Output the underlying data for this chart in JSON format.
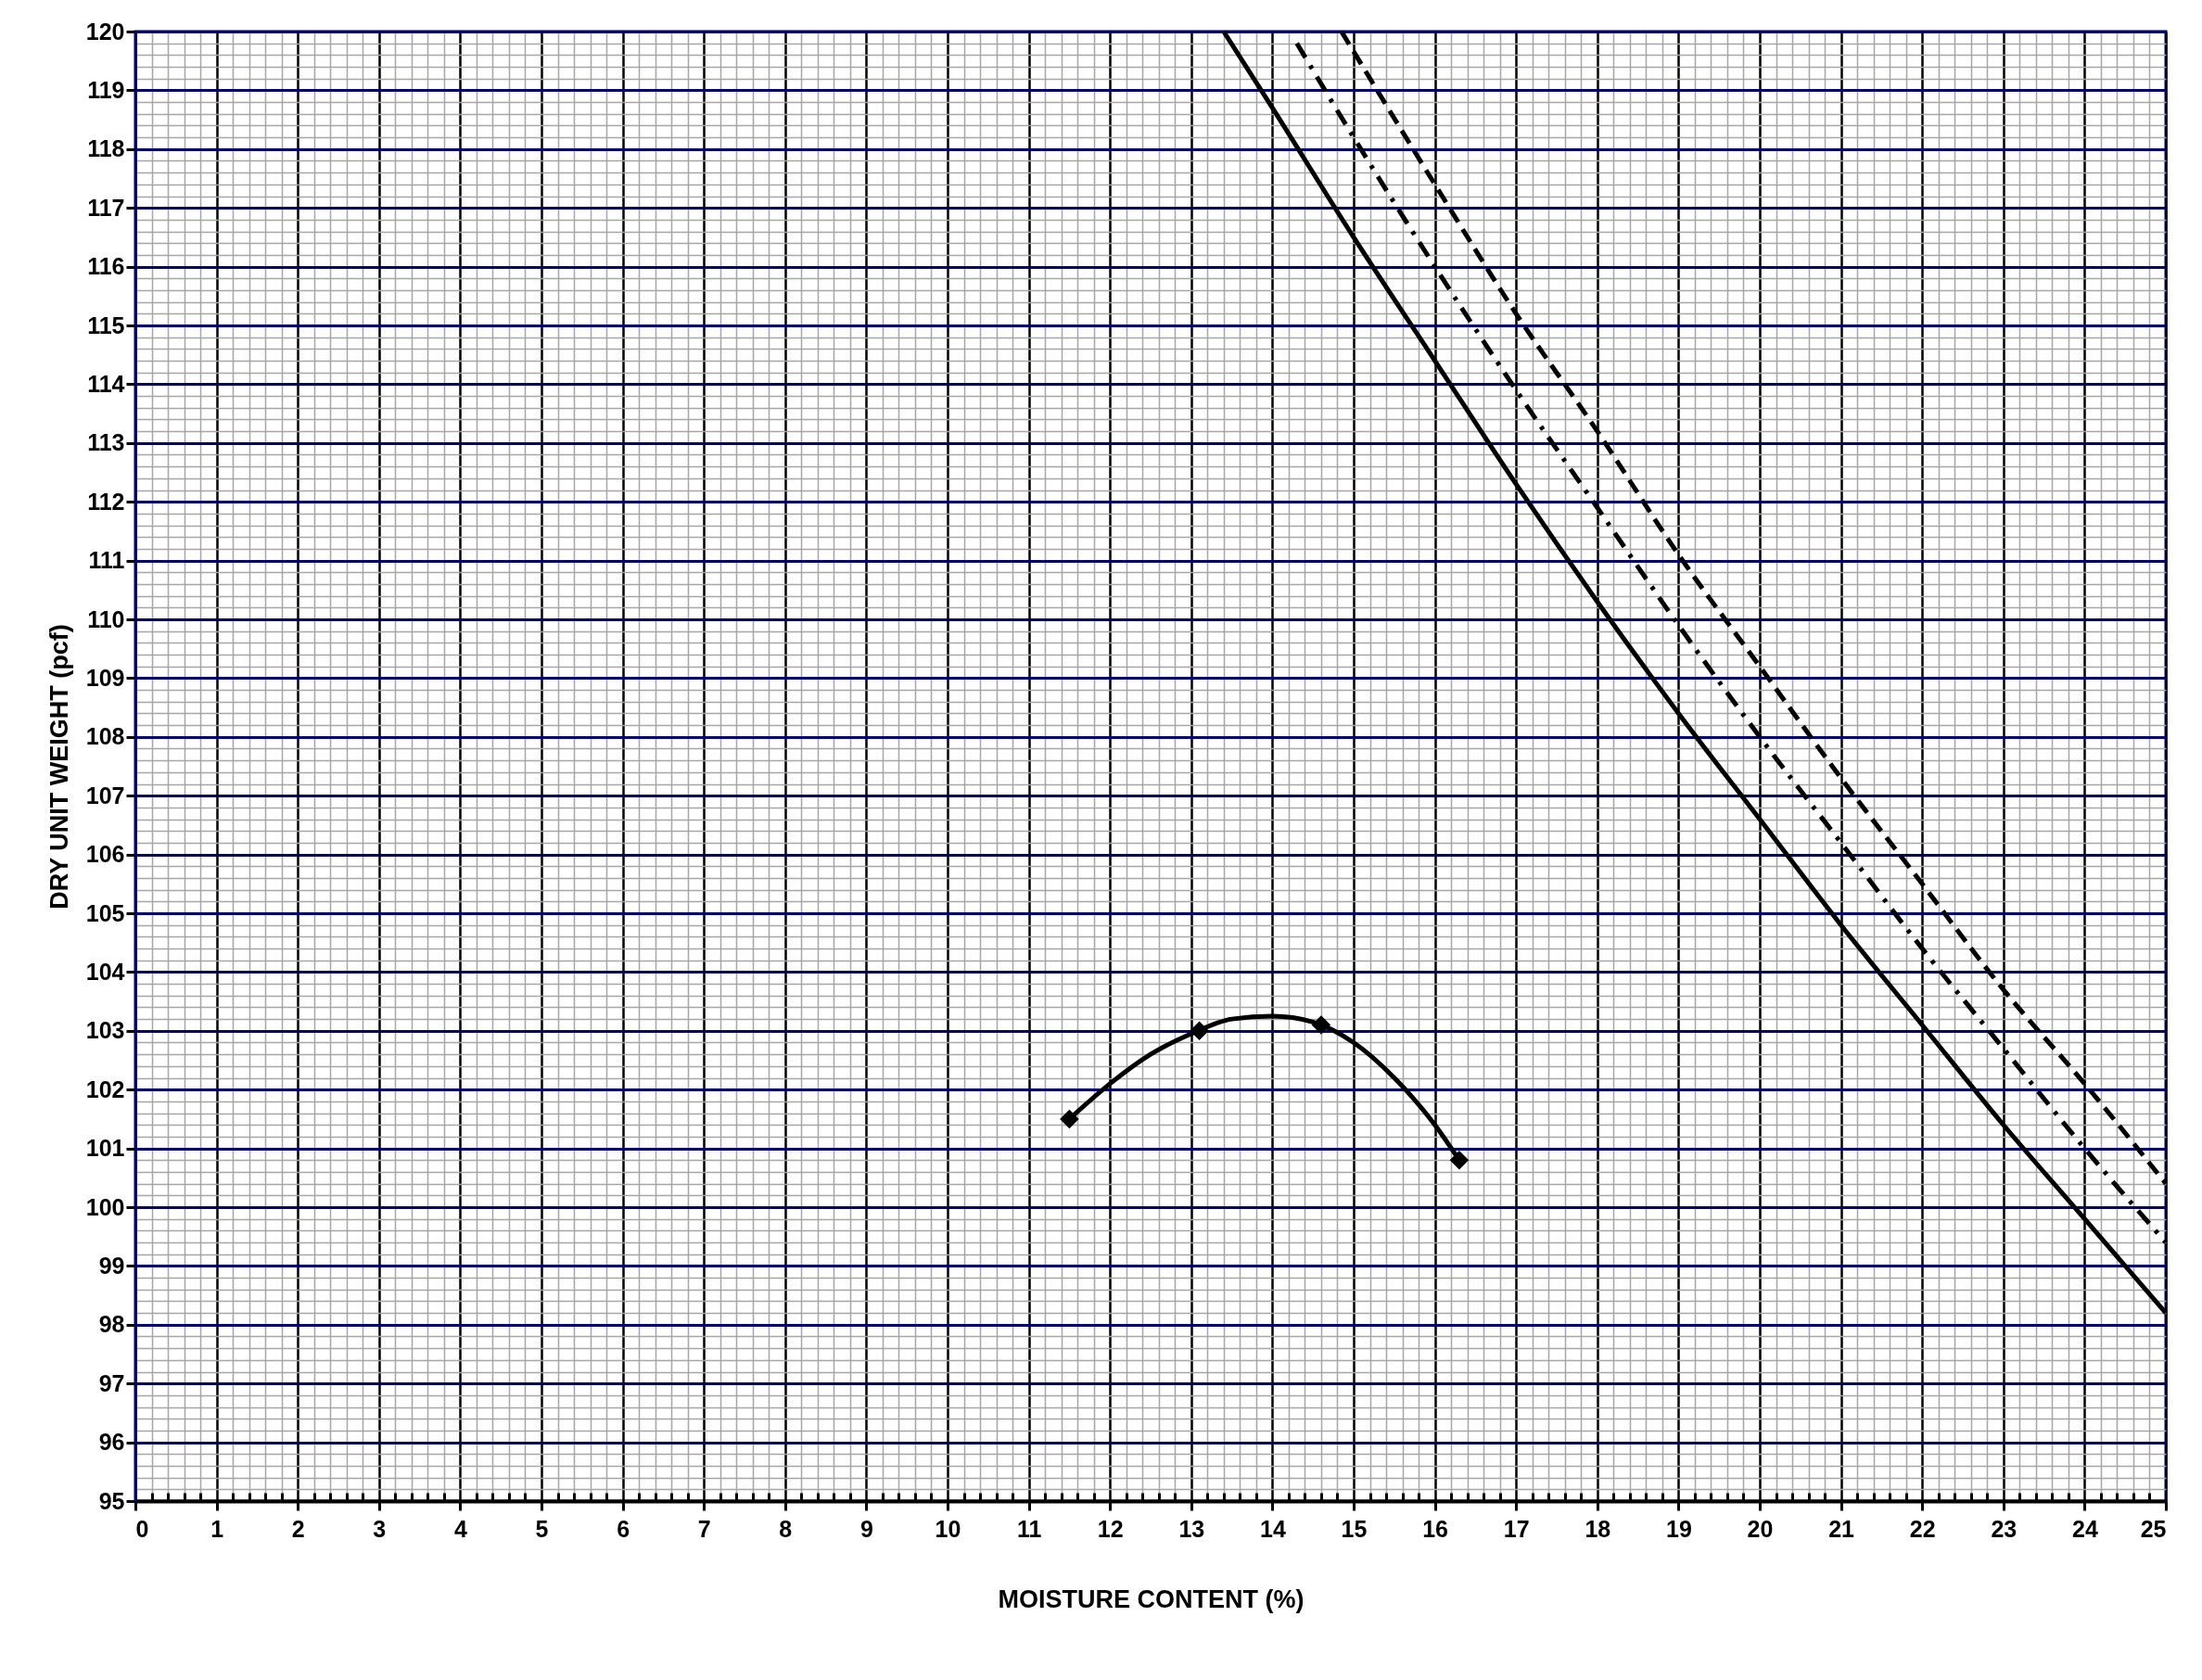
{
  "chart_data": {
    "type": "line",
    "xlabel": "MOISTURE CONTENT (%)",
    "ylabel": "DRY UNIT WEIGHT (pcf)",
    "xlim": [
      0,
      25
    ],
    "ylim": [
      95,
      120
    ],
    "xticks": [
      0,
      1,
      2,
      3,
      4,
      5,
      6,
      7,
      8,
      9,
      10,
      11,
      12,
      13,
      14,
      15,
      16,
      17,
      18,
      19,
      20,
      21,
      22,
      23,
      24,
      25
    ],
    "yticks": [
      95,
      96,
      97,
      98,
      99,
      100,
      101,
      102,
      103,
      104,
      105,
      106,
      107,
      108,
      109,
      110,
      111,
      112,
      113,
      114,
      115,
      116,
      117,
      118,
      119,
      120
    ],
    "grid": true,
    "series": [
      {
        "line_style": "solid",
        "color": "#000000",
        "x": [
          13.4,
          14,
          15,
          16,
          17,
          18,
          19,
          20,
          21,
          22,
          23,
          24,
          25
        ],
        "values": [
          120.0,
          118.7,
          116.5,
          114.4,
          112.3,
          110.3,
          108.4,
          106.6,
          104.8,
          103.1,
          101.4,
          99.8,
          98.2
        ]
      },
      {
        "line_style": "dashdot",
        "color": "#000000",
        "x": [
          14.3,
          15,
          16,
          17,
          18,
          19,
          20,
          21,
          22,
          23,
          24,
          25
        ],
        "values": [
          119.8,
          118.2,
          116.0,
          113.9,
          111.9,
          109.9,
          108.0,
          106.2,
          104.4,
          102.7,
          101.0,
          99.4
        ]
      },
      {
        "line_style": "dashed",
        "color": "#000000",
        "x": [
          14.85,
          16,
          17,
          18,
          19,
          20,
          21,
          22,
          23,
          24,
          25
        ],
        "values": [
          120.0,
          117.4,
          115.2,
          113.2,
          111.1,
          109.2,
          107.3,
          105.5,
          103.7,
          102.1,
          100.4
        ]
      },
      {
        "line_style": "solid",
        "color": "#000000",
        "x": [
          11.5,
          12,
          12.5,
          13,
          13.5,
          14,
          14.5,
          15,
          15.5,
          16,
          16.3
        ],
        "values": [
          101.5,
          102.1,
          102.6,
          102.95,
          103.2,
          103.25,
          103.15,
          102.8,
          102.2,
          101.4,
          100.8
        ]
      },
      {
        "type": "scatter",
        "marker": "diamond",
        "color": "#000000",
        "x": [
          11.5,
          13.1,
          14.6,
          16.3
        ],
        "values": [
          101.5,
          103.0,
          103.1,
          100.8
        ]
      }
    ]
  }
}
